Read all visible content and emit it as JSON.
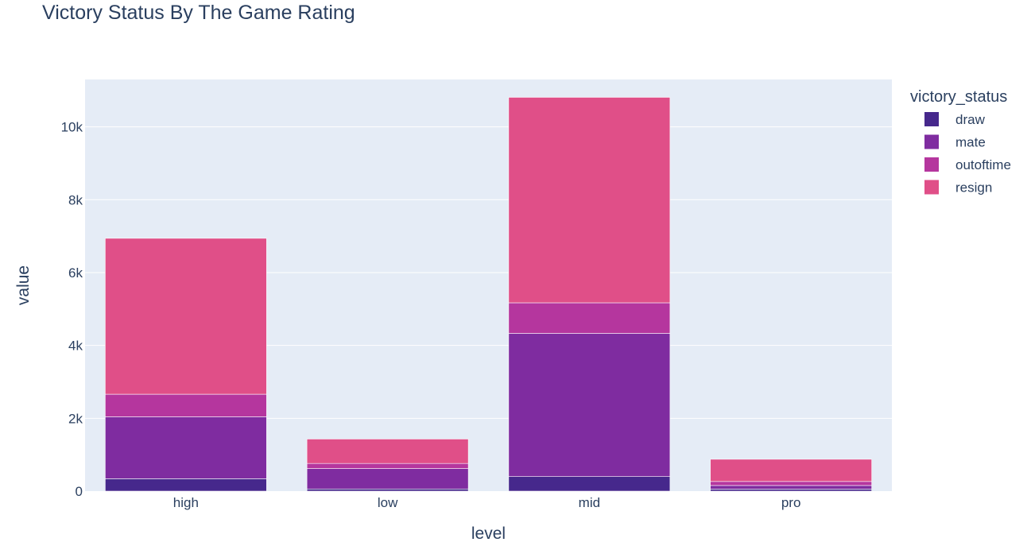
{
  "chart_data": {
    "type": "bar",
    "barmode": "stack",
    "title": "Victory Status By The Game Rating",
    "xlabel": "level",
    "ylabel": "value",
    "categories": [
      "high",
      "low",
      "mid",
      "pro"
    ],
    "ylim": [
      0,
      11300
    ],
    "yticks": [
      0,
      2000,
      4000,
      6000,
      8000,
      10000
    ],
    "ytick_labels": [
      "0",
      "2k",
      "4k",
      "6k",
      "8k",
      "10k"
    ],
    "grid": true,
    "legend": {
      "title": "victory_status",
      "position": "top-right"
    },
    "series": [
      {
        "name": "draw",
        "color": "#46288c",
        "values": [
          340,
          60,
          400,
          55
        ]
      },
      {
        "name": "mate",
        "color": "#7f2ca0",
        "values": [
          1700,
          560,
          3930,
          100
        ]
      },
      {
        "name": "outoftime",
        "color": "#b5369e",
        "values": [
          620,
          140,
          840,
          110
        ]
      },
      {
        "name": "resign",
        "color": "#e04f88",
        "values": [
          4280,
          670,
          5640,
          610
        ]
      }
    ],
    "plot_background": "#e5ecf6",
    "grid_color": "#ffffff"
  }
}
